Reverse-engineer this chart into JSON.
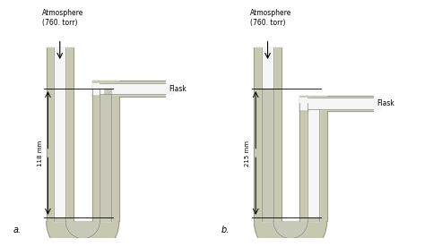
{
  "bg_color": "#ffffff",
  "tube_wall_color": "#c8c8b0",
  "tube_inner_color": "#f5f5f5",
  "liquid_color": "#c8c8b8",
  "text_color": "#000000",
  "outline_color": "#888880",
  "fig_width": 4.73,
  "fig_height": 2.58,
  "diagrams": [
    {
      "label": "a.",
      "atm_text": "Atmosphere\n(760. torr)",
      "flask_text": "Flask",
      "measurement": "118 mm",
      "is_b": false
    },
    {
      "label": "b.",
      "atm_text": "Atmosphere\n(760. torr)",
      "flask_text": "Flask",
      "measurement": "215 mm",
      "is_b": true
    }
  ]
}
